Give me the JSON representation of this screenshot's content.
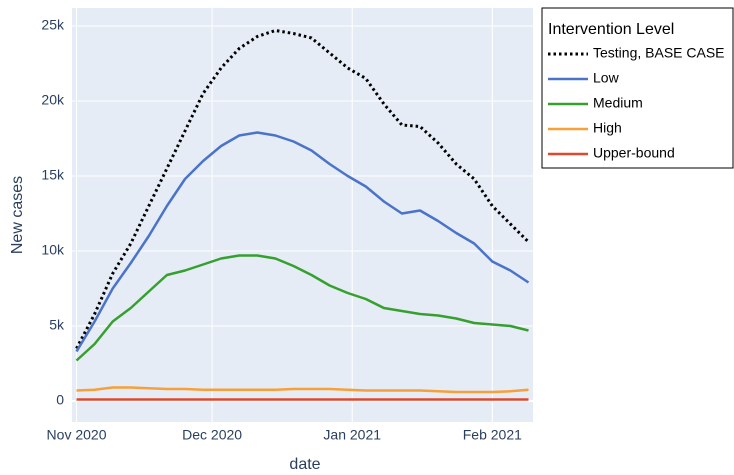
{
  "chart_data": {
    "type": "line",
    "x_label": "date",
    "y_label": "New cases",
    "legend_title": "Intervention Level",
    "legend": "outside-top-right",
    "grid": true,
    "x": [
      0,
      4,
      8,
      12,
      16,
      20,
      24,
      28,
      32,
      36,
      40,
      44,
      48,
      52,
      56,
      60,
      64,
      68,
      72,
      76,
      80,
      84,
      88,
      92,
      96,
      100
    ],
    "xlim": [
      -1,
      101
    ],
    "xticks": [
      {
        "value": 0,
        "label": "Nov 2020"
      },
      {
        "value": 30,
        "label": "Dec 2020"
      },
      {
        "value": 61,
        "label": "Jan 2021"
      },
      {
        "value": 92,
        "label": "Feb 2021"
      }
    ],
    "ylim": [
      -1400,
      26200
    ],
    "yticks": [
      0,
      {
        "value": 5000,
        "label": "5k"
      },
      {
        "value": 10000,
        "label": "10k"
      },
      {
        "value": 15000,
        "label": "15k"
      },
      {
        "value": 20000,
        "label": "20k"
      },
      {
        "value": 25000,
        "label": "25k"
      }
    ],
    "series": [
      {
        "name": "Testing, BASE CASE",
        "color": "#000000",
        "dash": "dotted",
        "values": [
          3500,
          5800,
          8500,
          10500,
          13000,
          15500,
          18000,
          20500,
          22200,
          23500,
          24300,
          24700,
          24500,
          24200,
          23200,
          22200,
          21500,
          19800,
          18400,
          18300,
          17200,
          15800,
          14800,
          13000,
          11800,
          10600
        ]
      },
      {
        "name": "Low",
        "color": "#4b73c9",
        "values": [
          3300,
          5300,
          7500,
          9200,
          11000,
          13000,
          14800,
          16000,
          17000,
          17700,
          17900,
          17700,
          17300,
          16700,
          15800,
          15000,
          14300,
          13300,
          12500,
          12700,
          12000,
          11200,
          10500,
          9300,
          8700,
          7900
        ]
      },
      {
        "name": "Medium",
        "color": "#36a02f",
        "values": [
          2700,
          3800,
          5300,
          6200,
          7300,
          8400,
          8700,
          9100,
          9500,
          9700,
          9700,
          9500,
          9000,
          8400,
          7700,
          7200,
          6800,
          6200,
          6000,
          5800,
          5700,
          5500,
          5200,
          5100,
          5000,
          4700
        ]
      },
      {
        "name": "High",
        "color": "#f7a03a",
        "values": [
          700,
          750,
          900,
          900,
          850,
          800,
          800,
          750,
          750,
          750,
          750,
          750,
          800,
          800,
          800,
          750,
          700,
          700,
          700,
          700,
          650,
          600,
          600,
          600,
          650,
          750
        ]
      },
      {
        "name": "Upper-bound",
        "color": "#e0482d",
        "values": [
          100,
          100,
          100,
          100,
          100,
          100,
          100,
          100,
          100,
          100,
          100,
          100,
          100,
          100,
          100,
          100,
          100,
          100,
          100,
          100,
          100,
          100,
          100,
          100,
          100,
          100
        ]
      }
    ]
  }
}
